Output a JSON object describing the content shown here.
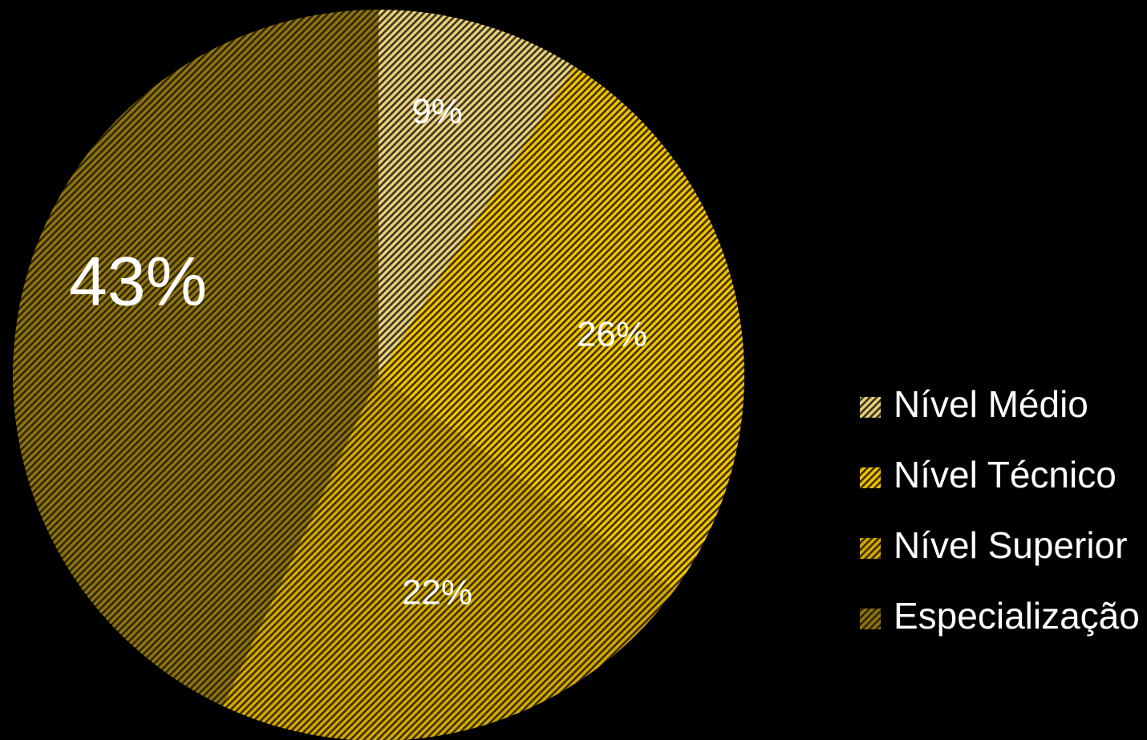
{
  "chart_data": {
    "type": "pie",
    "title": "",
    "categories": [
      "Nível Médio",
      "Nível Técnico",
      "Nível Superior",
      "Especialização"
    ],
    "values": [
      9,
      26,
      22,
      43
    ],
    "data_labels": [
      "9%",
      "26%",
      "22%",
      "43%"
    ],
    "legend_position": "right",
    "start_angle_deg": 0,
    "direction": "clockwise",
    "colors": [
      "#e9cf7a",
      "#f2c200",
      "#d4a900",
      "#8f7410"
    ],
    "stripe_colors": [
      "#3a3320",
      "#3d3000",
      "#3a2e00",
      "#2e2605"
    ]
  }
}
